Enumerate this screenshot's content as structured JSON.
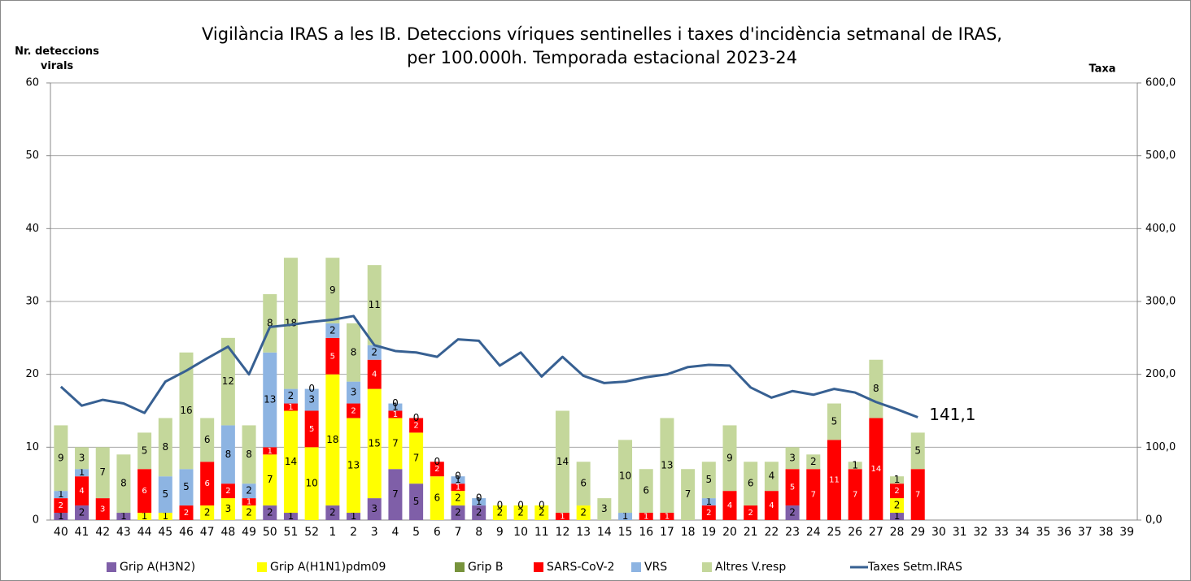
{
  "chart_data": {
    "type": "bar",
    "title": "Vigilància IRAS  a les IB. Deteccions víriques sentinelles i taxes d'incidència setmanal de IRAS,",
    "subtitle": "per 100.000h. Temporada estacional 2023-24",
    "y_label": "Nr. deteccions virals",
    "y2_label": "Taxa",
    "stacked": true,
    "categories": [
      "40",
      "41",
      "42",
      "43",
      "44",
      "45",
      "46",
      "47",
      "48",
      "49",
      "50",
      "51",
      "52",
      "1",
      "2",
      "3",
      "4",
      "5",
      "6",
      "7",
      "8",
      "9",
      "10",
      "11",
      "12",
      "13",
      "14",
      "15",
      "16",
      "17",
      "18",
      "19",
      "20",
      "21",
      "22",
      "23",
      "24",
      "25",
      "26",
      "27",
      "28",
      "29",
      "30",
      "31",
      "32",
      "33",
      "34",
      "35",
      "36",
      "37",
      "38",
      "39"
    ],
    "ylim": [
      0,
      60
    ],
    "yticks": [
      0,
      10,
      20,
      30,
      40,
      50,
      60
    ],
    "y2lim": [
      0,
      600
    ],
    "y2ticks": [
      {
        "value": 0,
        "label": "0,0"
      },
      {
        "value": 100,
        "label": "100,0"
      },
      {
        "value": 200,
        "label": "200,0"
      },
      {
        "value": 300,
        "label": "300,0"
      },
      {
        "value": 400,
        "label": "400,0"
      },
      {
        "value": 500,
        "label": "500,0"
      },
      {
        "value": 600,
        "label": "600,0"
      }
    ],
    "grid": true,
    "legend": "bottom",
    "series": [
      {
        "name": "Grip A(H3N2)",
        "color": "#7f5fa8",
        "values": [
          1,
          2,
          null,
          1,
          null,
          null,
          null,
          null,
          null,
          null,
          2,
          1,
          null,
          2,
          1,
          3,
          7,
          5,
          null,
          2,
          2,
          null,
          null,
          null,
          null,
          null,
          null,
          null,
          null,
          null,
          null,
          null,
          null,
          null,
          null,
          2,
          null,
          null,
          null,
          null,
          1,
          null,
          null,
          null,
          null,
          null,
          null,
          null,
          null,
          null,
          null,
          null
        ]
      },
      {
        "name": "Grip A(H1N1)pdm09",
        "color": "#ffff00",
        "values": [
          null,
          null,
          null,
          null,
          1,
          1,
          null,
          2,
          3,
          2,
          7,
          14,
          10,
          18,
          13,
          15,
          7,
          7,
          6,
          2,
          null,
          2,
          2,
          2,
          null,
          2,
          null,
          null,
          null,
          null,
          null,
          null,
          null,
          null,
          null,
          null,
          null,
          null,
          null,
          null,
          2,
          null,
          null,
          null,
          null,
          null,
          null,
          null,
          null,
          null,
          null,
          null
        ]
      },
      {
        "name": "Grip B",
        "color": "#77933c",
        "values": [
          null,
          null,
          null,
          null,
          null,
          null,
          null,
          null,
          null,
          null,
          null,
          null,
          null,
          null,
          null,
          null,
          null,
          null,
          null,
          null,
          null,
          null,
          null,
          null,
          null,
          null,
          null,
          null,
          null,
          null,
          null,
          null,
          null,
          null,
          null,
          null,
          null,
          null,
          null,
          null,
          null,
          null,
          null,
          null,
          null,
          null,
          null,
          null,
          null,
          null,
          null,
          null
        ]
      },
      {
        "name": "SARS-CoV-2",
        "color": "#ff0000",
        "values": [
          2,
          4,
          3,
          null,
          6,
          null,
          2,
          6,
          2,
          1,
          1,
          1,
          5,
          5,
          2,
          4,
          1,
          2,
          2,
          1,
          null,
          null,
          null,
          null,
          1,
          null,
          null,
          null,
          1,
          1,
          null,
          2,
          4,
          2,
          4,
          5,
          7,
          11,
          7,
          14,
          2,
          7,
          null,
          null,
          null,
          null,
          null,
          null,
          null,
          null,
          null,
          null
        ]
      },
      {
        "name": "VRS",
        "color": "#8db4e2",
        "values": [
          1,
          1,
          null,
          null,
          null,
          5,
          5,
          null,
          8,
          2,
          13,
          2,
          3,
          2,
          3,
          2,
          1,
          null,
          null,
          1,
          1,
          null,
          null,
          null,
          null,
          null,
          null,
          1,
          null,
          null,
          null,
          1,
          null,
          null,
          null,
          null,
          null,
          null,
          null,
          null,
          null,
          null,
          null,
          null,
          null,
          null,
          null,
          null,
          null,
          null,
          null,
          null
        ]
      },
      {
        "name": "Altres V.resp",
        "color": "#c4d79b",
        "values": [
          9,
          3,
          7,
          8,
          5,
          8,
          16,
          6,
          12,
          8,
          8,
          18,
          0,
          9,
          8,
          11,
          0,
          0,
          0,
          0,
          0,
          0,
          0,
          0,
          14,
          6,
          3,
          10,
          6,
          13,
          7,
          5,
          9,
          6,
          4,
          3,
          2,
          5,
          1,
          8,
          1,
          5,
          null,
          null,
          null,
          null,
          null,
          null,
          null,
          null,
          null,
          null
        ]
      },
      {
        "name": "Taxes Setm.IRAS",
        "type": "line",
        "axis": "y2",
        "color": "#376092",
        "values": [
          183,
          157,
          165,
          160,
          147,
          190,
          205,
          222,
          238,
          200,
          265,
          268,
          272,
          275,
          280,
          240,
          232,
          230,
          224,
          248,
          246,
          212,
          230,
          197,
          224,
          198,
          188,
          190,
          196,
          200,
          210,
          213,
          212,
          182,
          168,
          177,
          172,
          180,
          175,
          162,
          152,
          141.1,
          null,
          null,
          null,
          null,
          null,
          null,
          null,
          null,
          null,
          null
        ],
        "value_labels": [
          null,
          null,
          null,
          null,
          null,
          null,
          null,
          null,
          null,
          null,
          null,
          null,
          null,
          null,
          null,
          null,
          null,
          null,
          null,
          null,
          null,
          null,
          null,
          null,
          null,
          null,
          null,
          null,
          null,
          null,
          null,
          null,
          null,
          null,
          null,
          null,
          null,
          null,
          null,
          null,
          null,
          "141,1",
          null,
          null,
          null,
          null,
          null,
          null,
          null,
          null,
          null,
          null
        ]
      }
    ]
  }
}
